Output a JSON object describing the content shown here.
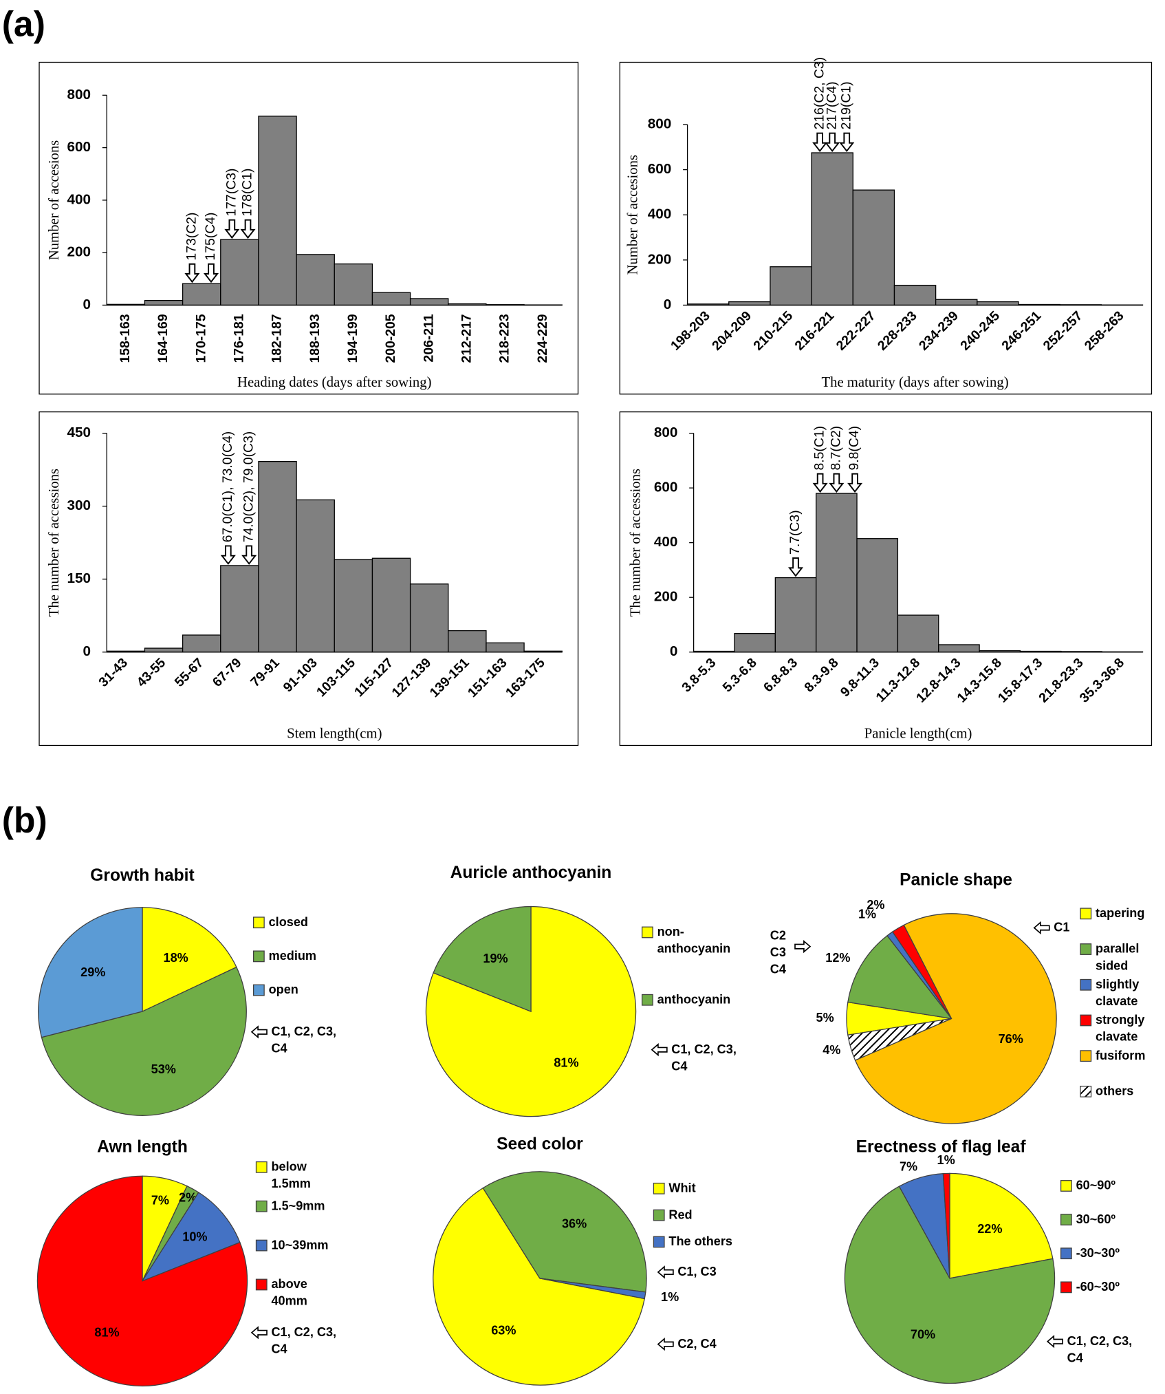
{
  "panels": [
    "(a)",
    "(b)"
  ],
  "chart_data": [
    {
      "type": "bar",
      "categories": [
        "158-163",
        "164-169",
        "170-175",
        "176-181",
        "182-187",
        "188-193",
        "194-199",
        "200-205",
        "206-211",
        "212-217",
        "218-223",
        "224-229"
      ],
      "values": [
        3,
        18,
        82,
        250,
        720,
        193,
        157,
        48,
        25,
        5,
        2,
        1
      ],
      "color": "#808080",
      "ylim": [
        0,
        800
      ],
      "yticks": [
        0,
        200,
        400,
        600,
        800
      ],
      "xlabel": "Heading dates (days after sowing)",
      "ylabel": "Number of accesions",
      "annotations": [
        "173(C2)",
        "175(C4)",
        "177(C3)",
        "178(C1)"
      ]
    },
    {
      "type": "bar",
      "categories": [
        "198-203",
        "204-209",
        "210-215",
        "216-221",
        "222-227",
        "228-233",
        "234-239",
        "240-245",
        "246-251",
        "252-257",
        "258-263"
      ],
      "values": [
        5,
        15,
        170,
        675,
        510,
        88,
        25,
        15,
        3,
        2,
        1
      ],
      "color": "#808080",
      "ylim": [
        0,
        800
      ],
      "yticks": [
        0,
        200,
        400,
        600,
        800
      ],
      "xlabel": "The maturity (days after sowing)",
      "ylabel": "Number of accesions",
      "annotations": [
        "216(C2, C3)",
        "217(C4)",
        "219(C1)"
      ]
    },
    {
      "type": "bar",
      "categories": [
        "31-43",
        "43-55",
        "55-67",
        "67-79",
        "79-91",
        "91-103",
        "103-115",
        "115-127",
        "127-139",
        "139-151",
        "151-163",
        "163-175"
      ],
      "values": [
        2,
        8,
        35,
        178,
        392,
        313,
        190,
        193,
        140,
        44,
        19,
        2
      ],
      "color": "#808080",
      "ylim": [
        0,
        450
      ],
      "yticks": [
        0,
        150,
        300,
        450
      ],
      "xlabel": "Stem length(cm)",
      "ylabel": "The number of accessions",
      "annotations": [
        "67.0(C1), 73.0(C4)",
        "74.0(C2), 79.0(C3)"
      ]
    },
    {
      "type": "bar",
      "categories": [
        "3.8-5.3",
        "5.3-6.8",
        "6.8-8.3",
        "8.3-9.8",
        "9.8-11.3",
        "11.3-12.8",
        "12.8-14.3",
        "14.3-15.8",
        "15.8-17.3",
        "21.8-23.3",
        "35.3-36.8"
      ],
      "values": [
        3,
        68,
        272,
        580,
        415,
        135,
        27,
        5,
        3,
        2,
        1
      ],
      "color": "#808080",
      "ylim": [
        0,
        800
      ],
      "yticks": [
        0,
        200,
        400,
        600,
        800
      ],
      "xlabel": "Panicle length(cm)",
      "ylabel": "The number of accessions",
      "annotations": [
        "7.7(C3)",
        "8.5(C1)",
        "8.7(C2)",
        "9.8(C4)"
      ]
    },
    {
      "type": "pie",
      "title": "Growth habit",
      "series": [
        {
          "name": "closed",
          "color": "#ffff00",
          "values": [
            18
          ],
          "value_labels": [
            "18%"
          ]
        },
        {
          "name": "medium",
          "color": "#70ad47",
          "values": [
            53
          ],
          "value_labels": [
            "53%"
          ]
        },
        {
          "name": "open",
          "color": "#5b9bd5",
          "values": [
            29
          ],
          "value_labels": [
            "29%"
          ]
        }
      ],
      "notes": [
        "C1, C2, C3, C4"
      ]
    },
    {
      "type": "pie",
      "title": "Auricle anthocyanin",
      "series": [
        {
          "name": "non-anthocyanin",
          "color": "#ffff00",
          "values": [
            81
          ],
          "value_labels": [
            "81%"
          ]
        },
        {
          "name": "anthocyanin",
          "color": "#70ad47",
          "values": [
            19
          ],
          "value_labels": [
            "19%"
          ]
        }
      ],
      "notes": [
        "C1, C2, C3, C4"
      ]
    },
    {
      "type": "pie",
      "title": "Panicle shape",
      "series": [
        {
          "name": "tapering",
          "color": "#ffff00",
          "values": [
            5
          ],
          "value_labels": [
            "5%"
          ]
        },
        {
          "name": "parallel sided",
          "color": "#70ad47",
          "values": [
            12
          ],
          "value_labels": [
            "12%"
          ]
        },
        {
          "name": "slightly clavate",
          "color": "#4472c4",
          "values": [
            1
          ],
          "value_labels": [
            "1%"
          ]
        },
        {
          "name": "strongly clavate",
          "color": "#ff0000",
          "values": [
            2
          ],
          "value_labels": [
            "2%"
          ]
        },
        {
          "name": "fusiform",
          "color": "#ffc000",
          "values": [
            76
          ],
          "value_labels": [
            "76%"
          ]
        },
        {
          "name": "others",
          "color": "#ffffff",
          "pattern": "hatch",
          "values": [
            4
          ],
          "value_labels": [
            "4%"
          ]
        }
      ],
      "notes": [
        "C1",
        "C2 C3 C4"
      ]
    },
    {
      "type": "pie",
      "title": "Awn length",
      "series": [
        {
          "name": "below 1.5mm",
          "color": "#ffff00",
          "values": [
            7
          ],
          "value_labels": [
            "7%"
          ]
        },
        {
          "name": "1.5~9mm",
          "color": "#70ad47",
          "values": [
            2
          ],
          "value_labels": [
            "2%"
          ]
        },
        {
          "name": "10~39mm",
          "color": "#4472c4",
          "values": [
            10
          ],
          "value_labels": [
            "10%"
          ]
        },
        {
          "name": "above 40mm",
          "color": "#ff0000",
          "values": [
            81
          ],
          "value_labels": [
            "81%"
          ]
        }
      ],
      "notes": [
        "C1, C2, C3, C4"
      ]
    },
    {
      "type": "pie",
      "title": "Seed color",
      "series": [
        {
          "name": "Whit",
          "color": "#ffff00",
          "values": [
            63
          ],
          "value_labels": [
            "63%"
          ]
        },
        {
          "name": "Red",
          "color": "#70ad47",
          "values": [
            36
          ],
          "value_labels": [
            "36%"
          ]
        },
        {
          "name": "The others",
          "color": "#4472c4",
          "values": [
            1
          ],
          "value_labels": [
            "1%"
          ]
        }
      ],
      "notes": [
        "C1, C3",
        "C2, C4"
      ]
    },
    {
      "type": "pie",
      "title": "Erectness of flag leaf",
      "series": [
        {
          "name": "60~90º",
          "color": "#ffff00",
          "values": [
            22
          ],
          "value_labels": [
            "22%"
          ]
        },
        {
          "name": "30~60º",
          "color": "#70ad47",
          "values": [
            70
          ],
          "value_labels": [
            "70%"
          ]
        },
        {
          "name": "-30~30º",
          "color": "#4472c4",
          "values": [
            7
          ],
          "value_labels": [
            "7%"
          ]
        },
        {
          "name": "-60~30º",
          "color": "#ff0000",
          "values": [
            1
          ],
          "value_labels": [
            "1%"
          ]
        }
      ],
      "notes": [
        "C1, C2, C3, C4"
      ]
    }
  ]
}
